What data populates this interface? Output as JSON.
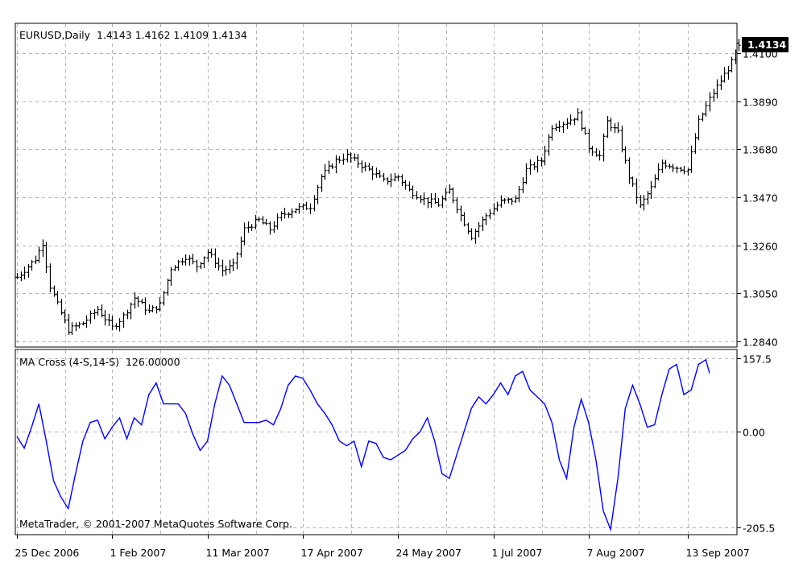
{
  "header": {
    "main_title": "EURUSD,Daily  1.4143 1.4162 1.4109 1.4134",
    "current_price": "1.4134",
    "indicator_title": "MA Cross (4-S,14-S)  126.00000",
    "copyright": "MetaTrader, © 2001-2007 MetaQuotes Software Corp."
  },
  "colors": {
    "background": "#ffffff",
    "bars": "#000000",
    "grid": "#b4b4b4",
    "indicator_line": "#0000ff",
    "price_label_bg": "#000000",
    "price_label_text": "#ffffff"
  },
  "chart_data": [
    {
      "type": "ohlc",
      "symbol": "EURUSD",
      "timeframe": "Daily",
      "last_bar": {
        "open": 1.4143,
        "high": 1.4162,
        "low": 1.4109,
        "close": 1.4134
      },
      "current_price_label": "1.4134",
      "ylim": [
        1.2815,
        1.423
      ],
      "y_ticks": [
        "1.4100",
        "1.3890",
        "1.3680",
        "1.3470",
        "1.3260",
        "1.3050",
        "1.2840"
      ],
      "x_ticks": [
        "25 Dec 2006",
        "1 Feb 2007",
        "11 Mar 2007",
        "17 Apr 2007",
        "24 May 2007",
        "1 Jul 2007",
        "7 Aug 2007",
        "13 Sep 2007"
      ],
      "grid": true,
      "close_path": [
        [
          0,
          1.312
        ],
        [
          5,
          1.32
        ],
        [
          7,
          1.327
        ],
        [
          9,
          1.308
        ],
        [
          11,
          1.3
        ],
        [
          14,
          1.289
        ],
        [
          18,
          1.292
        ],
        [
          22,
          1.298
        ],
        [
          26,
          1.29
        ],
        [
          29,
          1.295
        ],
        [
          32,
          1.303
        ],
        [
          36,
          1.297
        ],
        [
          39,
          1.3
        ],
        [
          42,
          1.316
        ],
        [
          46,
          1.321
        ],
        [
          49,
          1.317
        ],
        [
          52,
          1.323
        ],
        [
          56,
          1.315
        ],
        [
          59,
          1.317
        ],
        [
          62,
          1.333
        ],
        [
          66,
          1.337
        ],
        [
          69,
          1.333
        ],
        [
          72,
          1.339
        ],
        [
          76,
          1.342
        ],
        [
          80,
          1.343
        ],
        [
          83,
          1.356
        ],
        [
          87,
          1.363
        ],
        [
          90,
          1.365
        ],
        [
          93,
          1.362
        ],
        [
          97,
          1.358
        ],
        [
          100,
          1.354
        ],
        [
          104,
          1.356
        ],
        [
          107,
          1.35
        ],
        [
          111,
          1.346
        ],
        [
          115,
          1.344
        ],
        [
          118,
          1.35
        ],
        [
          121,
          1.339
        ],
        [
          124,
          1.33
        ],
        [
          128,
          1.339
        ],
        [
          132,
          1.345
        ],
        [
          136,
          1.346
        ],
        [
          139,
          1.359
        ],
        [
          143,
          1.363
        ],
        [
          146,
          1.378
        ],
        [
          150,
          1.38
        ],
        [
          153,
          1.383
        ],
        [
          156,
          1.369
        ],
        [
          159,
          1.365
        ],
        [
          161,
          1.38
        ],
        [
          164,
          1.375
        ],
        [
          167,
          1.356
        ],
        [
          170,
          1.343
        ],
        [
          173,
          1.351
        ],
        [
          176,
          1.362
        ],
        [
          180,
          1.36
        ],
        [
          183,
          1.359
        ],
        [
          186,
          1.38
        ],
        [
          189,
          1.39
        ],
        [
          192,
          1.398
        ],
        [
          195,
          1.406
        ],
        [
          197,
          1.4134
        ]
      ]
    },
    {
      "type": "line",
      "name": "MA Cross (4-S,14-S)",
      "current_value": "126.00000",
      "ylim": [
        -221,
        177
      ],
      "y_ticks": [
        "157.5",
        "0.00",
        "-205.5"
      ],
      "points": [
        [
          0,
          -10
        ],
        [
          2,
          -35
        ],
        [
          4,
          10
        ],
        [
          6,
          60
        ],
        [
          8,
          -20
        ],
        [
          10,
          -105
        ],
        [
          12,
          -140
        ],
        [
          14,
          -165
        ],
        [
          16,
          -90
        ],
        [
          18,
          -20
        ],
        [
          20,
          20
        ],
        [
          22,
          25
        ],
        [
          24,
          -15
        ],
        [
          26,
          10
        ],
        [
          28,
          30
        ],
        [
          30,
          -15
        ],
        [
          32,
          30
        ],
        [
          34,
          15
        ],
        [
          36,
          80
        ],
        [
          38,
          105
        ],
        [
          40,
          60
        ],
        [
          42,
          60
        ],
        [
          44,
          60
        ],
        [
          46,
          40
        ],
        [
          48,
          -5
        ],
        [
          50,
          -40
        ],
        [
          52,
          -20
        ],
        [
          54,
          60
        ],
        [
          56,
          120
        ],
        [
          58,
          100
        ],
        [
          60,
          60
        ],
        [
          62,
          20
        ],
        [
          64,
          20
        ],
        [
          66,
          20
        ],
        [
          68,
          25
        ],
        [
          70,
          15
        ],
        [
          72,
          50
        ],
        [
          74,
          100
        ],
        [
          76,
          120
        ],
        [
          78,
          115
        ],
        [
          80,
          90
        ],
        [
          82,
          60
        ],
        [
          84,
          40
        ],
        [
          86,
          15
        ],
        [
          88,
          -20
        ],
        [
          90,
          -30
        ],
        [
          92,
          -20
        ],
        [
          94,
          -75
        ],
        [
          96,
          -20
        ],
        [
          98,
          -25
        ],
        [
          100,
          -55
        ],
        [
          102,
          -60
        ],
        [
          104,
          -50
        ],
        [
          106,
          -40
        ],
        [
          108,
          -15
        ],
        [
          110,
          0
        ],
        [
          112,
          30
        ],
        [
          114,
          -20
        ],
        [
          116,
          -90
        ],
        [
          118,
          -100
        ],
        [
          120,
          -50
        ],
        [
          122,
          0
        ],
        [
          124,
          50
        ],
        [
          126,
          75
        ],
        [
          128,
          60
        ],
        [
          130,
          80
        ],
        [
          132,
          105
        ],
        [
          134,
          80
        ],
        [
          136,
          120
        ],
        [
          138,
          130
        ],
        [
          140,
          90
        ],
        [
          142,
          75
        ],
        [
          144,
          60
        ],
        [
          146,
          20
        ],
        [
          148,
          -60
        ],
        [
          150,
          -100
        ],
        [
          152,
          10
        ],
        [
          154,
          70
        ],
        [
          156,
          20
        ],
        [
          158,
          -60
        ],
        [
          160,
          -170
        ],
        [
          162,
          -210
        ],
        [
          164,
          -100
        ],
        [
          166,
          50
        ],
        [
          168,
          100
        ],
        [
          170,
          60
        ],
        [
          172,
          10
        ],
        [
          174,
          15
        ],
        [
          176,
          80
        ],
        [
          178,
          135
        ],
        [
          180,
          145
        ],
        [
          182,
          80
        ],
        [
          184,
          90
        ],
        [
          186,
          145
        ],
        [
          188,
          155
        ],
        [
          189,
          126
        ]
      ]
    }
  ]
}
